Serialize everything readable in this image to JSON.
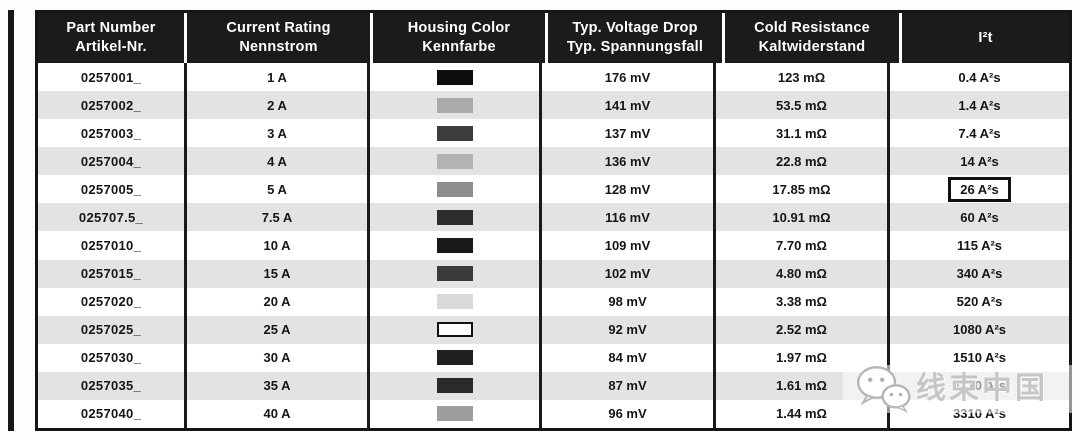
{
  "table": {
    "columns": [
      {
        "id": "part-number",
        "line1": "Part Number",
        "line2": "Artikel-Nr."
      },
      {
        "id": "current-rating",
        "line1": "Current Rating",
        "line2": "Nennstrom"
      },
      {
        "id": "housing-color",
        "line1": "Housing Color",
        "line2": "Kennfarbe"
      },
      {
        "id": "voltage-drop",
        "line1": "Typ. Voltage Drop",
        "line2": "Typ. Spannungsfall"
      },
      {
        "id": "cold-resistance",
        "line1": "Cold Resistance",
        "line2": "Kaltwiderstand"
      },
      {
        "id": "i2t",
        "line1": "I²t",
        "line2": ""
      }
    ],
    "rows": [
      {
        "part": "0257001_",
        "current": "1 A",
        "housing_color": "#0e0e0e",
        "swatch_outlined": false,
        "voltage_drop": "176 mV",
        "cold_resistance": "123 mΩ",
        "i2t": "0.4 A²s",
        "i2t_boxed": false
      },
      {
        "part": "0257002_",
        "current": "2 A",
        "housing_color": "#ababab",
        "swatch_outlined": false,
        "voltage_drop": "141 mV",
        "cold_resistance": "53.5 mΩ",
        "i2t": "1.4 A²s",
        "i2t_boxed": false
      },
      {
        "part": "0257003_",
        "current": "3 A",
        "housing_color": "#3d3d3d",
        "swatch_outlined": false,
        "voltage_drop": "137 mV",
        "cold_resistance": "31.1 mΩ",
        "i2t": "7.4 A²s",
        "i2t_boxed": false
      },
      {
        "part": "0257004_",
        "current": "4 A",
        "housing_color": "#b3b3b3",
        "swatch_outlined": false,
        "voltage_drop": "136 mV",
        "cold_resistance": "22.8 mΩ",
        "i2t": "14 A²s",
        "i2t_boxed": false
      },
      {
        "part": "0257005_",
        "current": "5 A",
        "housing_color": "#8d8d8d",
        "swatch_outlined": false,
        "voltage_drop": "128 mV",
        "cold_resistance": "17.85 mΩ",
        "i2t": "26 A²s",
        "i2t_boxed": true
      },
      {
        "part": "025707.5_",
        "current": "7.5 A",
        "housing_color": "#2c2c2c",
        "swatch_outlined": false,
        "voltage_drop": "116 mV",
        "cold_resistance": "10.91 mΩ",
        "i2t": "60 A²s",
        "i2t_boxed": false
      },
      {
        "part": "0257010_",
        "current": "10 A",
        "housing_color": "#191919",
        "swatch_outlined": false,
        "voltage_drop": "109 mV",
        "cold_resistance": "7.70 mΩ",
        "i2t": "115 A²s",
        "i2t_boxed": false
      },
      {
        "part": "0257015_",
        "current": "15 A",
        "housing_color": "#3a3a3a",
        "swatch_outlined": false,
        "voltage_drop": "102 mV",
        "cold_resistance": "4.80 mΩ",
        "i2t": "340 A²s",
        "i2t_boxed": false
      },
      {
        "part": "0257020_",
        "current": "20 A",
        "housing_color": "#d9d9d9",
        "swatch_outlined": false,
        "voltage_drop": "98 mV",
        "cold_resistance": "3.38 mΩ",
        "i2t": "520 A²s",
        "i2t_boxed": false
      },
      {
        "part": "0257025_",
        "current": "25 A",
        "housing_color": "#ffffff",
        "swatch_outlined": true,
        "voltage_drop": "92 mV",
        "cold_resistance": "2.52 mΩ",
        "i2t": "1080 A²s",
        "i2t_boxed": false
      },
      {
        "part": "0257030_",
        "current": "30 A",
        "housing_color": "#202020",
        "swatch_outlined": false,
        "voltage_drop": "84 mV",
        "cold_resistance": "1.97 mΩ",
        "i2t": "1510 A²s",
        "i2t_boxed": false
      },
      {
        "part": "0257035_",
        "current": "35 A",
        "housing_color": "#2a2a2a",
        "swatch_outlined": false,
        "voltage_drop": "87 mV",
        "cold_resistance": "1.61 mΩ",
        "i2t": "2210 A²s",
        "i2t_boxed": false
      },
      {
        "part": "0257040_",
        "current": "40 A",
        "housing_color": "#9e9e9e",
        "swatch_outlined": false,
        "voltage_drop": "96 mV",
        "cold_resistance": "1.44 mΩ",
        "i2t": "3310 A²s",
        "i2t_boxed": false
      }
    ]
  },
  "watermark": {
    "text": "线束中国",
    "icon": "wechat-icon"
  },
  "colors": {
    "header_bg": "#1b1b1b",
    "header_text": "#ffffff",
    "stripe": "#e3e3e3",
    "table_border": "#151515",
    "body_text": "#161616",
    "watermark_text": "#c6c6c6"
  }
}
